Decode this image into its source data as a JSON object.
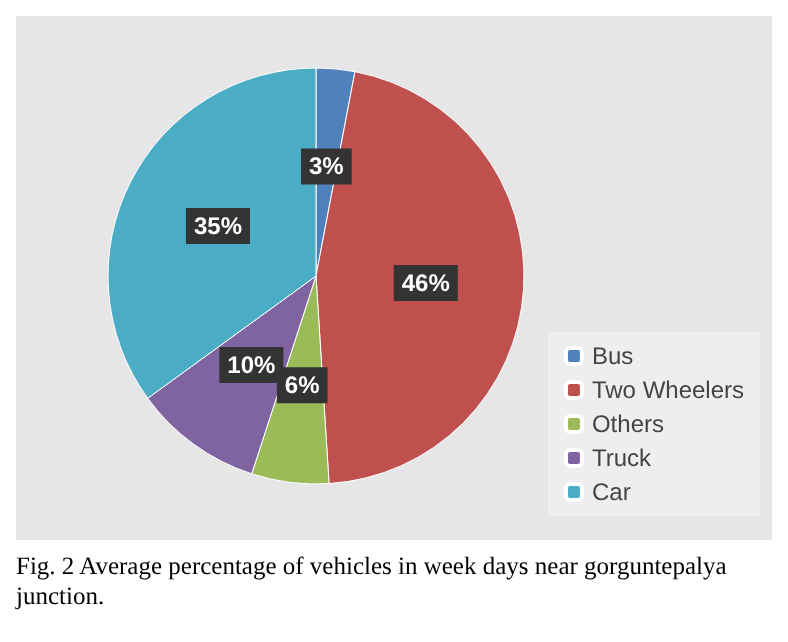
{
  "chart_data": {
    "type": "pie",
    "categories": [
      "Bus",
      "Two Wheelers",
      "Others",
      "Truck",
      "Car"
    ],
    "values": [
      3,
      46,
      6,
      10,
      35
    ],
    "colors": [
      "#4f81bd",
      "#c0504d",
      "#9bbb59",
      "#8064a2",
      "#4bacc6"
    ],
    "value_labels": [
      "3%",
      "46%",
      "6%",
      "10%",
      "35%"
    ],
    "legend": "bottom right",
    "annotations": [
      "Fig. 2  Average percentage of vehicles in week days near gorguntepalya junction."
    ]
  }
}
